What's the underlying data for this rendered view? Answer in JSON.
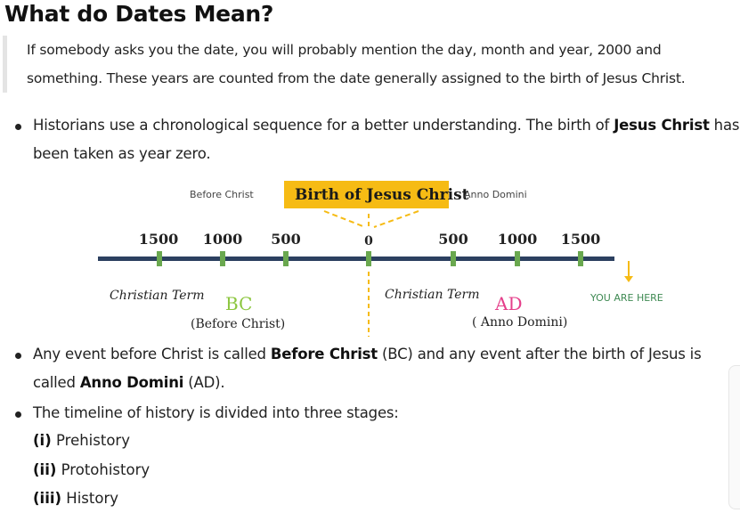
{
  "heading": "What do Dates Mean?",
  "quote": {
    "line1": "If somebody asks you the date, you will probably mention the day, month and year, 2000 and",
    "line2": "something. These years are counted from the date generally assigned to the birth of Jesus Christ."
  },
  "bullet1": {
    "line1_pre": "Historians use a chronological sequence for a better understanding. The birth of ",
    "line1_bold": "Jesus Christ",
    "line1_post": " has",
    "line2": "been taken as year zero."
  },
  "diagram": {
    "before_christ": "Before Christ",
    "birth_label": "Birth of Jesus Christ",
    "anno_domini": "Anno Domini",
    "ticks_left": [
      "1500",
      "1000",
      "500"
    ],
    "zero": "0",
    "ticks_right": [
      "500",
      "1000",
      "1500"
    ],
    "christian_term_left": "Christian Term",
    "bc": "BC",
    "bc_full": "(Before Christ)",
    "christian_term_right": "Christian Term",
    "ad": "AD",
    "ad_full": "( Anno Domini)",
    "you_are_here": "YOU ARE HERE",
    "colors": {
      "axis": "#2c4060",
      "tick": "#6aa84f",
      "highlight": "#f6bb14",
      "bc": "#8cc63f",
      "ad": "#e5408b",
      "you_are_here": "#3f8a53"
    }
  },
  "bullet2": {
    "line1_pre": "Any event before Christ is called ",
    "line1_bold": "Before Christ",
    "line1_post": " (BC) and any event after the birth of Jesus is",
    "line2_pre": "called ",
    "line2_bold": "Anno Domini",
    "line2_post": " (AD)."
  },
  "bullet3": {
    "line1": "The timeline of history is divided into three stages:"
  },
  "stages": [
    {
      "num": "(i)",
      "label": " Prehistory"
    },
    {
      "num": "(ii)",
      "label": " Protohistory"
    },
    {
      "num": "(iii)",
      "label": " History"
    }
  ]
}
